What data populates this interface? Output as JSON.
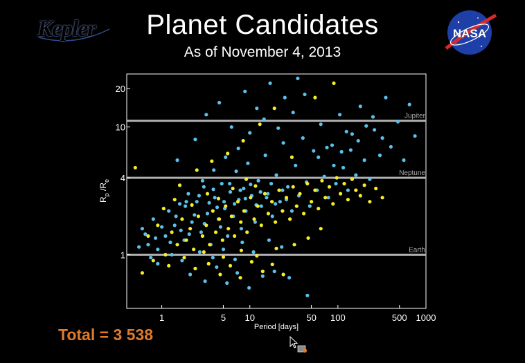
{
  "header": {
    "title": "Planet Candidates",
    "subtitle": "As of November 4, 2013",
    "kepler_logo_text": "Kepler",
    "nasa_logo_text": "NASA"
  },
  "footer": {
    "total": "Total = 3 538"
  },
  "colors": {
    "background": "#000000",
    "frame": "#ffffff",
    "reference_line": "#b0b0b0",
    "blue_points": "#5bc0eb",
    "yellow_points": "#f4ee2a",
    "total_text": "#e07b2c",
    "kepler_logo": "#3d5fb8",
    "nasa_blue": "#1f3fa8",
    "nasa_red": "#d42a2a"
  },
  "chart_data": {
    "type": "scatter",
    "title": "",
    "xlabel": "Period [days]",
    "ylabel": "Rp / Re",
    "xscale": "log",
    "yscale": "log",
    "xlim": [
      0.4,
      1000
    ],
    "ylim": [
      0.38,
      26
    ],
    "x_ticks": [
      {
        "value": 1,
        "label": "1"
      },
      {
        "value": 5,
        "label": "5"
      },
      {
        "value": 10,
        "label": "10"
      },
      {
        "value": 50,
        "label": "50"
      },
      {
        "value": 100,
        "label": "100"
      },
      {
        "value": 500,
        "label": "500"
      },
      {
        "value": 1000,
        "label": "1000"
      }
    ],
    "y_ticks": [
      {
        "value": 1,
        "label": "1"
      },
      {
        "value": 4,
        "label": "4"
      },
      {
        "value": 10,
        "label": "10"
      },
      {
        "value": 20,
        "label": "20"
      }
    ],
    "reference_lines": [
      {
        "y": 1,
        "label": "Earth"
      },
      {
        "y": 4,
        "label": "Neptune"
      },
      {
        "y": 11.2,
        "label": "Jupiter"
      }
    ],
    "series": [
      {
        "color": "#5bc0eb",
        "points": [
          [
            0.6,
            1.6
          ],
          [
            0.7,
            1.2
          ],
          [
            0.8,
            1.9
          ],
          [
            0.9,
            1.1
          ],
          [
            1.1,
            1.4
          ],
          [
            1.2,
            2.2
          ],
          [
            1.3,
            1.0
          ],
          [
            1.4,
            1.7
          ],
          [
            1.6,
            2.5
          ],
          [
            1.8,
            1.3
          ],
          [
            2.0,
            3.0
          ],
          [
            2.2,
            1.8
          ],
          [
            2.5,
            2.6
          ],
          [
            2.8,
            1.5
          ],
          [
            3.0,
            3.4
          ],
          [
            3.3,
            2.1
          ],
          [
            3.6,
            1.2
          ],
          [
            4.0,
            2.8
          ],
          [
            4.4,
            1.9
          ],
          [
            4.8,
            3.6
          ],
          [
            5.2,
            2.3
          ],
          [
            5.6,
            1.4
          ],
          [
            6.0,
            3.1
          ],
          [
            6.5,
            2.0
          ],
          [
            7.0,
            4.5
          ],
          [
            7.5,
            2.7
          ],
          [
            8.0,
            1.6
          ],
          [
            8.5,
            3.3
          ],
          [
            9.0,
            2.2
          ],
          [
            9.5,
            5.2
          ],
          [
            10.5,
            2.9
          ],
          [
            11.5,
            1.8
          ],
          [
            12.5,
            3.8
          ],
          [
            13.5,
            2.4
          ],
          [
            15,
            6.0
          ],
          [
            16,
            3.0
          ],
          [
            18,
            2.0
          ],
          [
            20,
            4.2
          ],
          [
            22,
            2.6
          ],
          [
            24,
            7.5
          ],
          [
            27,
            3.4
          ],
          [
            30,
            2.2
          ],
          [
            33,
            5.0
          ],
          [
            36,
            2.9
          ],
          [
            40,
            8.2
          ],
          [
            44,
            3.7
          ],
          [
            48,
            2.4
          ],
          [
            53,
            6.5
          ],
          [
            58,
            3.2
          ],
          [
            64,
            10.5
          ],
          [
            70,
            4.1
          ],
          [
            78,
            2.8
          ],
          [
            86,
            7.2
          ],
          [
            95,
            3.6
          ],
          [
            105,
            12.5
          ],
          [
            115,
            4.8
          ],
          [
            130,
            3.2
          ],
          [
            145,
            8.8
          ],
          [
            160,
            4.2
          ],
          [
            180,
            14.5
          ],
          [
            200,
            5.5
          ],
          [
            230,
            3.9
          ],
          [
            260,
            9.5
          ],
          [
            300,
            6.0
          ],
          [
            350,
            17
          ],
          [
            400,
            7.0
          ],
          [
            480,
            11
          ],
          [
            560,
            5.5
          ],
          [
            650,
            15
          ],
          [
            750,
            8.5
          ],
          [
            1.5,
            5.5
          ],
          [
            2.4,
            8.0
          ],
          [
            3.2,
            12.5
          ],
          [
            4.5,
            15.5
          ],
          [
            6.2,
            10.0
          ],
          [
            8.8,
            19
          ],
          [
            12,
            14
          ],
          [
            17,
            22
          ],
          [
            25,
            17
          ],
          [
            35,
            24
          ],
          [
            2.1,
            0.7
          ],
          [
            3.1,
            0.62
          ],
          [
            4.2,
            0.8
          ],
          [
            5.5,
            0.6
          ],
          [
            7.2,
            0.72
          ],
          [
            9.8,
            0.55
          ],
          [
            14,
            0.68
          ],
          [
            19,
            0.74
          ],
          [
            28,
            0.66
          ],
          [
            45,
            0.48
          ],
          [
            0.9,
            0.85
          ],
          [
            1.7,
            0.9
          ],
          [
            2.7,
            1.05
          ],
          [
            3.8,
            0.95
          ],
          [
            5.0,
            1.1
          ],
          [
            6.8,
            0.92
          ],
          [
            8.2,
            1.25
          ],
          [
            11,
            1.05
          ],
          [
            16.5,
            1.3
          ],
          [
            23,
            1.15
          ],
          [
            1.9,
            2.6
          ],
          [
            2.9,
            3.8
          ],
          [
            3.9,
            4.6
          ],
          [
            5.3,
            5.8
          ],
          [
            7.4,
            6.8
          ],
          [
            10,
            9.0
          ],
          [
            14.5,
            11.5
          ],
          [
            21,
            9.8
          ],
          [
            31,
            13
          ],
          [
            42,
            18
          ],
          [
            60,
            5.8
          ],
          [
            75,
            6.9
          ],
          [
            90,
            5.0
          ],
          [
            110,
            6.4
          ],
          [
            125,
            9.2
          ],
          [
            140,
            6.6
          ],
          [
            170,
            7.8
          ],
          [
            210,
            10.2
          ],
          [
            250,
            12
          ],
          [
            320,
            8.2
          ],
          [
            0.55,
            1.15
          ],
          [
            0.65,
            1.45
          ],
          [
            0.75,
            0.95
          ],
          [
            0.85,
            1.35
          ],
          [
            1.0,
            1.65
          ],
          [
            1.25,
            1.25
          ],
          [
            1.45,
            2.0
          ],
          [
            1.65,
            1.55
          ],
          [
            1.85,
            2.4
          ],
          [
            2.05,
            1.45
          ],
          [
            2.35,
            2.05
          ],
          [
            2.65,
            2.9
          ],
          [
            3.05,
            1.75
          ],
          [
            3.45,
            2.55
          ],
          [
            3.85,
            3.25
          ],
          [
            4.25,
            2.35
          ],
          [
            4.65,
            1.65
          ],
          [
            5.1,
            2.6
          ],
          [
            5.9,
            3.6
          ],
          [
            6.7,
            2.5
          ],
          [
            7.8,
            3.2
          ],
          [
            8.9,
            2.75
          ],
          [
            10.2,
            3.55
          ],
          [
            11.8,
            2.45
          ],
          [
            13.2,
            3.1
          ],
          [
            15.5,
            2.8
          ],
          [
            17.5,
            3.6
          ],
          [
            19.5,
            2.5
          ],
          [
            23.5,
            3.2
          ],
          [
            26,
            2.7
          ]
        ]
      },
      {
        "color": "#f4ee2a",
        "points": [
          [
            0.7,
            1.4
          ],
          [
            0.9,
            1.7
          ],
          [
            1.1,
            1.0
          ],
          [
            1.3,
            1.5
          ],
          [
            1.5,
            1.2
          ],
          [
            1.7,
            1.9
          ],
          [
            1.9,
            1.3
          ],
          [
            2.1,
            1.6
          ],
          [
            2.3,
            1.1
          ],
          [
            2.6,
            2.0
          ],
          [
            2.9,
            1.4
          ],
          [
            3.2,
            1.7
          ],
          [
            3.5,
            1.2
          ],
          [
            3.8,
            2.2
          ],
          [
            4.1,
            1.5
          ],
          [
            4.5,
            1.9
          ],
          [
            4.9,
            1.3
          ],
          [
            5.3,
            2.4
          ],
          [
            5.7,
            1.6
          ],
          [
            6.2,
            2.0
          ],
          [
            6.7,
            1.4
          ],
          [
            7.3,
            2.6
          ],
          [
            7.9,
            1.8
          ],
          [
            8.6,
            2.2
          ],
          [
            9.3,
            1.5
          ],
          [
            10.2,
            2.8
          ],
          [
            11.2,
            1.9
          ],
          [
            12.3,
            2.4
          ],
          [
            13.5,
            1.7
          ],
          [
            14.8,
            3.0
          ],
          [
            16.2,
            2.1
          ],
          [
            17.8,
            2.6
          ],
          [
            19.5,
            1.8
          ],
          [
            21.5,
            3.2
          ],
          [
            23.5,
            2.2
          ],
          [
            26,
            2.8
          ],
          [
            28.5,
            1.9
          ],
          [
            31,
            3.4
          ],
          [
            34,
            2.4
          ],
          [
            37,
            3.0
          ],
          [
            41,
            2.1
          ],
          [
            45,
            3.6
          ],
          [
            50,
            2.6
          ],
          [
            55,
            3.2
          ],
          [
            60,
            2.3
          ],
          [
            66,
            3.8
          ],
          [
            72,
            2.8
          ],
          [
            80,
            3.4
          ],
          [
            88,
            2.5
          ],
          [
            97,
            4.0
          ],
          [
            107,
            3.0
          ],
          [
            118,
            3.6
          ],
          [
            130,
            2.7
          ],
          [
            145,
            3.9
          ],
          [
            160,
            3.2
          ],
          [
            180,
            2.9
          ],
          [
            200,
            3.5
          ],
          [
            230,
            2.6
          ],
          [
            270,
            3.3
          ],
          [
            320,
            2.8
          ],
          [
            2.4,
            0.78
          ],
          [
            3.4,
            0.85
          ],
          [
            4.6,
            0.7
          ],
          [
            6.0,
            0.82
          ],
          [
            7.8,
            0.66
          ],
          [
            10.5,
            0.88
          ],
          [
            14,
            0.74
          ],
          [
            18,
            0.84
          ],
          [
            24,
            0.7
          ],
          [
            0.8,
            0.9
          ],
          [
            1.2,
            0.82
          ],
          [
            1.8,
            0.95
          ],
          [
            3.0,
            1.05
          ],
          [
            5.0,
            0.96
          ],
          [
            8.0,
            1.08
          ],
          [
            12,
            0.98
          ],
          [
            20,
            1.12
          ],
          [
            32,
            1.2
          ],
          [
            46,
            1.35
          ],
          [
            64,
            1.6
          ],
          [
            1.6,
            3.5
          ],
          [
            2.5,
            4.6
          ],
          [
            3.7,
            5.4
          ],
          [
            5.6,
            6.2
          ],
          [
            8.4,
            7.8
          ],
          [
            13,
            10.5
          ],
          [
            19,
            14
          ],
          [
            30,
            5.8
          ],
          [
            55,
            17
          ],
          [
            90,
            22
          ],
          [
            0.5,
            4.8
          ],
          [
            0.6,
            0.72
          ],
          [
            1.05,
            2.3
          ],
          [
            1.4,
            2.7
          ],
          [
            2.2,
            2.45
          ],
          [
            3.3,
            3.0
          ],
          [
            4.4,
            2.75
          ],
          [
            6.4,
            3.3
          ],
          [
            9.1,
            3.9
          ],
          [
            11.6,
            3.45
          ]
        ]
      }
    ]
  }
}
